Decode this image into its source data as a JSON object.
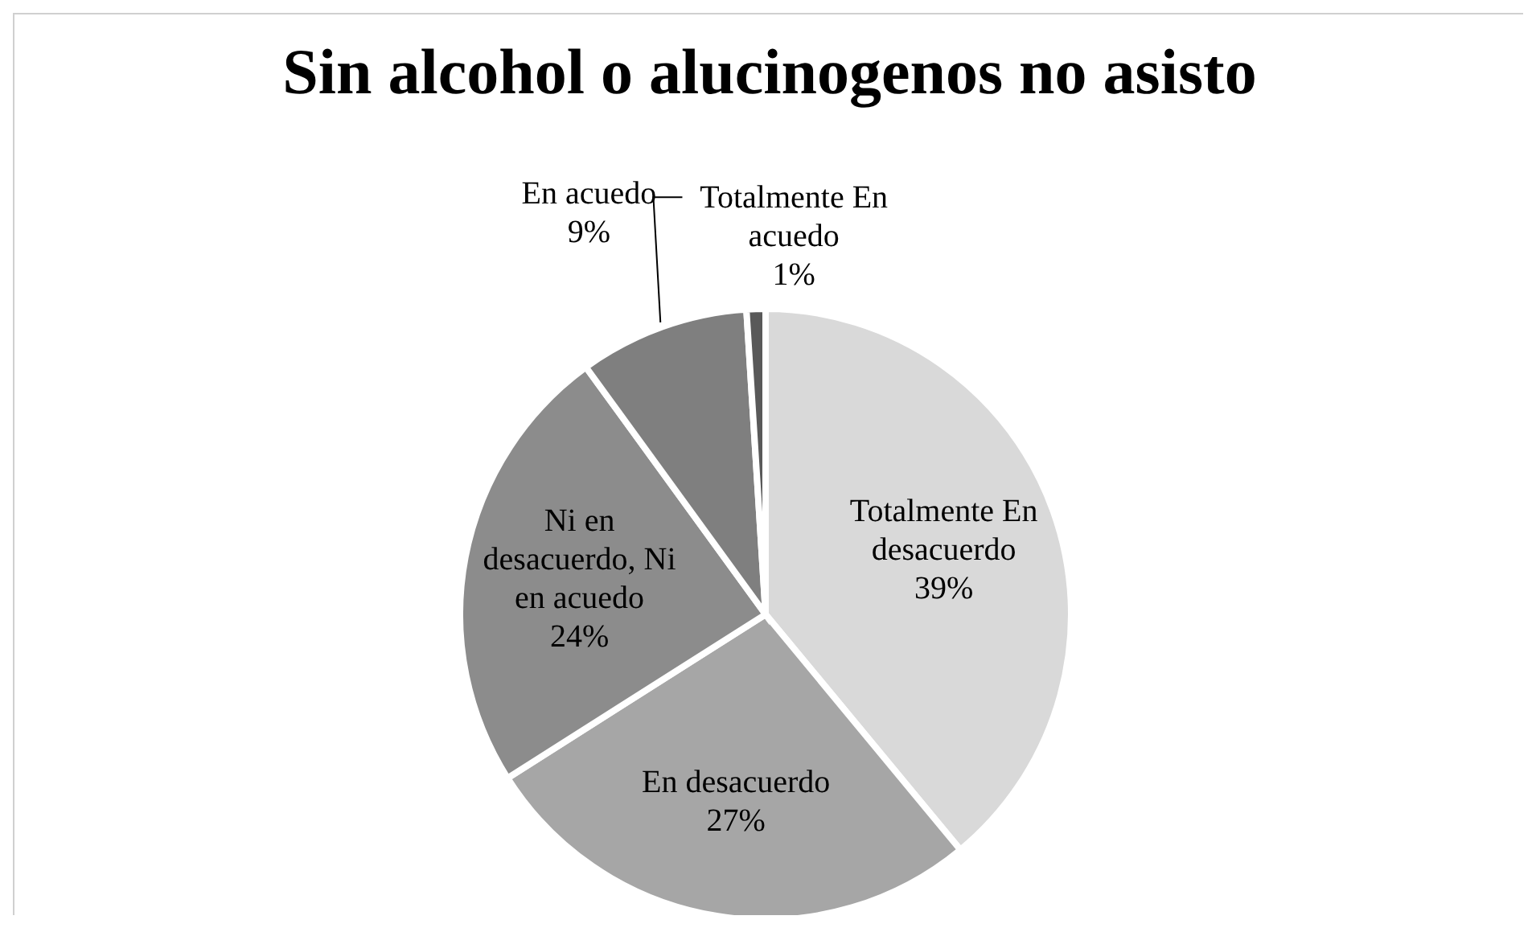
{
  "chart_data": {
    "type": "pie",
    "title": "Sin alcohol o alucinogenos no asisto",
    "categories": [
      "Totalmente En desacuerdo",
      "En desacuerdo",
      "Ni en desacuerdo, Ni en acuedo",
      "En acuedo",
      "Totalmente En acuedo"
    ],
    "values": [
      39,
      27,
      24,
      9,
      1
    ],
    "value_labels": [
      "39%",
      "27%",
      "24%",
      "9%",
      "1%"
    ],
    "colors": [
      "#d9d9d9",
      "#a6a6a6",
      "#8c8c8c",
      "#7f7f7f",
      "#595959"
    ],
    "legend": false
  }
}
